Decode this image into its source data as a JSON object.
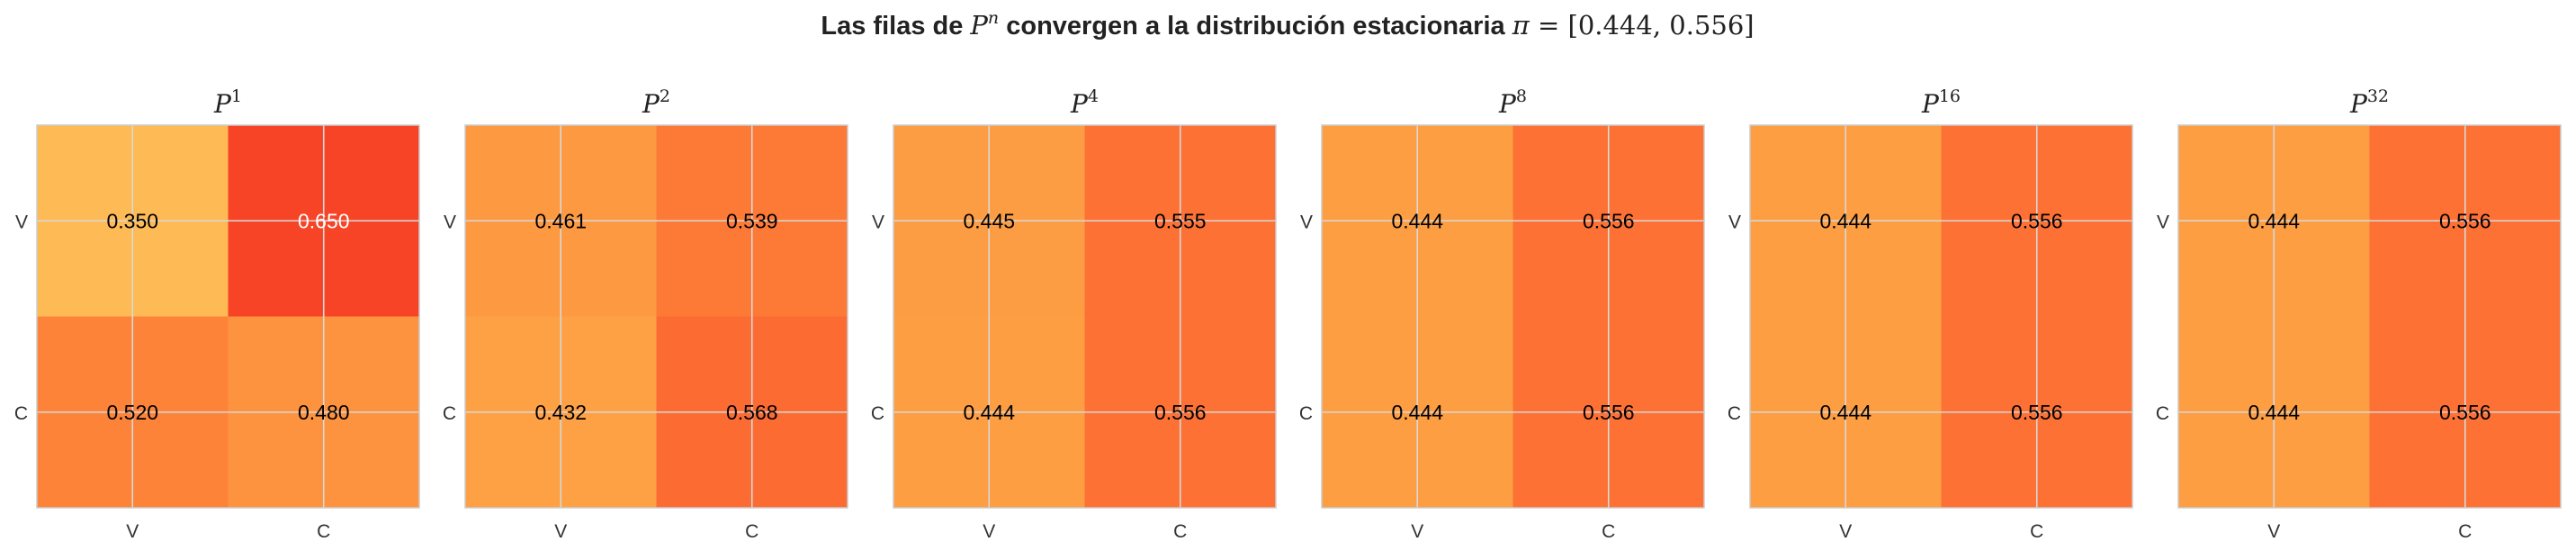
{
  "chart_data": {
    "type": "heatmap",
    "title": "Las filas de P^n convergen a la distribución estacionaria π = [0.444, 0.556]",
    "title_parts": {
      "prefix": "Las filas de ",
      "matrix_symbol": "P",
      "exponent_symbol": "n",
      "middle": " convergen a la distribución estacionaria ",
      "pi_symbol": "π",
      "equals": " = ",
      "vector": "[0.444, 0.556]"
    },
    "colormap": "YlOrRd",
    "color_range": [
      0,
      1
    ],
    "grid": true,
    "row_labels": [
      "V",
      "C"
    ],
    "col_labels": [
      "V",
      "C"
    ],
    "panels": [
      {
        "base": "P",
        "power": "1",
        "values": [
          [
            0.35,
            0.65
          ],
          [
            0.52,
            0.48
          ]
        ]
      },
      {
        "base": "P",
        "power": "2",
        "values": [
          [
            0.461,
            0.539
          ],
          [
            0.432,
            0.568
          ]
        ]
      },
      {
        "base": "P",
        "power": "4",
        "values": [
          [
            0.445,
            0.555
          ],
          [
            0.444,
            0.556
          ]
        ]
      },
      {
        "base": "P",
        "power": "8",
        "values": [
          [
            0.444,
            0.556
          ],
          [
            0.444,
            0.556
          ]
        ]
      },
      {
        "base": "P",
        "power": "16",
        "values": [
          [
            0.444,
            0.556
          ],
          [
            0.444,
            0.556
          ]
        ]
      },
      {
        "base": "P",
        "power": "32",
        "values": [
          [
            0.444,
            0.556
          ],
          [
            0.444,
            0.556
          ]
        ]
      }
    ]
  }
}
